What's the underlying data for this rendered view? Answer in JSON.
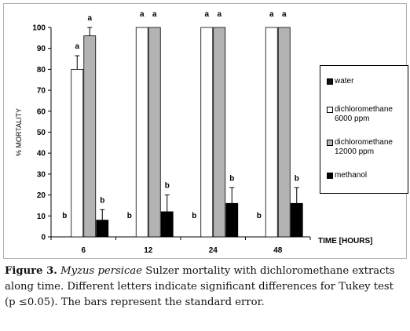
{
  "chart_data": {
    "type": "bar",
    "categories": [
      "6",
      "12",
      "24",
      "48"
    ],
    "xlabel": "TIME [HOURS]",
    "ylabel": "% MORTALITY",
    "ylim": [
      0,
      100
    ],
    "yticks": [
      0,
      10,
      20,
      30,
      40,
      50,
      60,
      70,
      80,
      90,
      100
    ],
    "grid": false,
    "legend_position": "right",
    "series": [
      {
        "name": "water",
        "values": [
          0,
          0,
          0,
          0
        ],
        "errors": [
          0,
          0,
          0,
          0
        ],
        "letters": [
          "b",
          "b",
          "b",
          "b"
        ],
        "color": "#111111"
      },
      {
        "name": "dichloromethane 6000 ppm",
        "values": [
          80,
          100,
          100,
          100
        ],
        "errors": [
          6.5,
          0,
          0,
          0
        ],
        "letters": [
          "a",
          "a",
          "a",
          "a"
        ],
        "color": "#ffffff"
      },
      {
        "name": "dichloromethane 12000 ppm",
        "values": [
          96,
          100,
          100,
          100
        ],
        "errors": [
          4,
          0,
          0,
          0
        ],
        "letters": [
          "a",
          "a",
          "a",
          "a"
        ],
        "color": "#b3b3b3"
      },
      {
        "name": "methanol",
        "values": [
          8,
          12,
          16,
          16
        ],
        "errors": [
          5,
          8,
          7.5,
          7.5
        ],
        "letters": [
          "b",
          "b",
          "b",
          "b"
        ],
        "color": "#000000"
      }
    ]
  },
  "legend": {
    "water": "water",
    "dcm6000_line1": "dichloromethane",
    "dcm6000_line2": "6000 ppm",
    "dcm12000_line1": "dichloromethane",
    "dcm12000_line2": "12000 ppm",
    "methanol": "methanol"
  },
  "caption": {
    "label": "Figure 3.",
    "species": "Myzus persicae",
    "text": " Sulzer mortality with dichloromethane extracts along time. Different letters indicate significant differences for Tukey test (p ≤0.05). The bars represent the standard error."
  }
}
